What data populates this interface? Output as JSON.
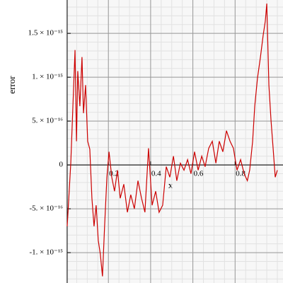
{
  "chart_data": {
    "type": "line",
    "xlabel": "x",
    "ylabel": "error",
    "x": [
      0.005,
      0.022,
      0.032,
      0.042,
      0.049,
      0.055,
      0.065,
      0.075,
      0.082,
      0.092,
      0.102,
      0.112,
      0.122,
      0.132,
      0.142,
      0.152,
      0.162,
      0.172,
      0.182,
      0.193,
      0.203,
      0.216,
      0.229,
      0.243,
      0.256,
      0.273,
      0.29,
      0.306,
      0.323,
      0.34,
      0.357,
      0.373,
      0.39,
      0.407,
      0.424,
      0.44,
      0.457,
      0.474,
      0.491,
      0.508,
      0.524,
      0.541,
      0.558,
      0.575,
      0.591,
      0.608,
      0.625,
      0.642,
      0.658,
      0.675,
      0.692,
      0.709,
      0.725,
      0.742,
      0.759,
      0.776,
      0.792,
      0.809,
      0.826,
      0.843,
      0.858,
      0.869,
      0.883,
      0.893,
      0.906,
      0.92,
      0.933,
      0.943,
      0.95,
      0.96,
      0.97,
      0.98,
      0.99,
      1.0
    ],
    "series": [
      {
        "color": "#cc0000",
        "values": [
          -7e-16,
          2.4e-17,
          6.7e-16,
          1.31e-15,
          2.7e-16,
          1.07e-15,
          6.7e-16,
          1.23e-15,
          5.9e-16,
          9.1e-16,
          2.7e-16,
          1.8e-16,
          -3.8e-16,
          -7e-16,
          -4.6e-16,
          -8.6e-16,
          -1.02e-15,
          -1.27e-15,
          -7e-16,
          -1.4e-16,
          1.5e-16,
          -1.4e-16,
          -3e-16,
          -6e-17,
          -3.8e-16,
          -2.2e-16,
          -5.4e-16,
          -3.4e-16,
          -5e-16,
          -1.8e-16,
          -3.8e-16,
          -5.4e-16,
          1.9e-16,
          -4.6e-16,
          -3e-16,
          -5.4e-16,
          -4.6e-16,
          -2e-17,
          -1.4e-16,
          1e-16,
          -1.8e-16,
          2e-17,
          -6e-17,
          6e-17,
          -1e-16,
          1.5e-16,
          -6e-17,
          1e-16,
          -2e-17,
          1.9e-16,
          2.7e-16,
          2e-17,
          2.7e-16,
          1.5e-16,
          3.9e-16,
          2.7e-16,
          1.9e-16,
          -6e-17,
          6e-17,
          -1e-16,
          -1.8e-16,
          -6e-17,
          2.7e-16,
          6.7e-16,
          9.9e-16,
          1.23e-15,
          1.48e-15,
          1.64e-15,
          1.84e-15,
          9.1e-16,
          5.1e-16,
          1.9e-16,
          -1.4e-16,
          -6e-17
        ]
      }
    ],
    "xlim": [
      0,
      1
    ],
    "ylim": [
      -1.306e-15,
      1.84e-15
    ],
    "xticks": [
      0.2,
      0.4,
      0.6,
      0.8
    ],
    "yticks": [
      {
        "value": -1e-15,
        "label": "-1. × 10⁻¹⁵"
      },
      {
        "value": -5e-16,
        "label": "-5. × 10⁻¹⁶"
      },
      0,
      {
        "value": 5e-16,
        "label": "5. × 10⁻¹⁶"
      },
      {
        "value": 1e-15,
        "label": "1. × 10⁻¹⁵"
      },
      {
        "value": 1.5e-15,
        "label": "1.5 × 10⁻¹⁵"
      }
    ],
    "grid": true
  }
}
